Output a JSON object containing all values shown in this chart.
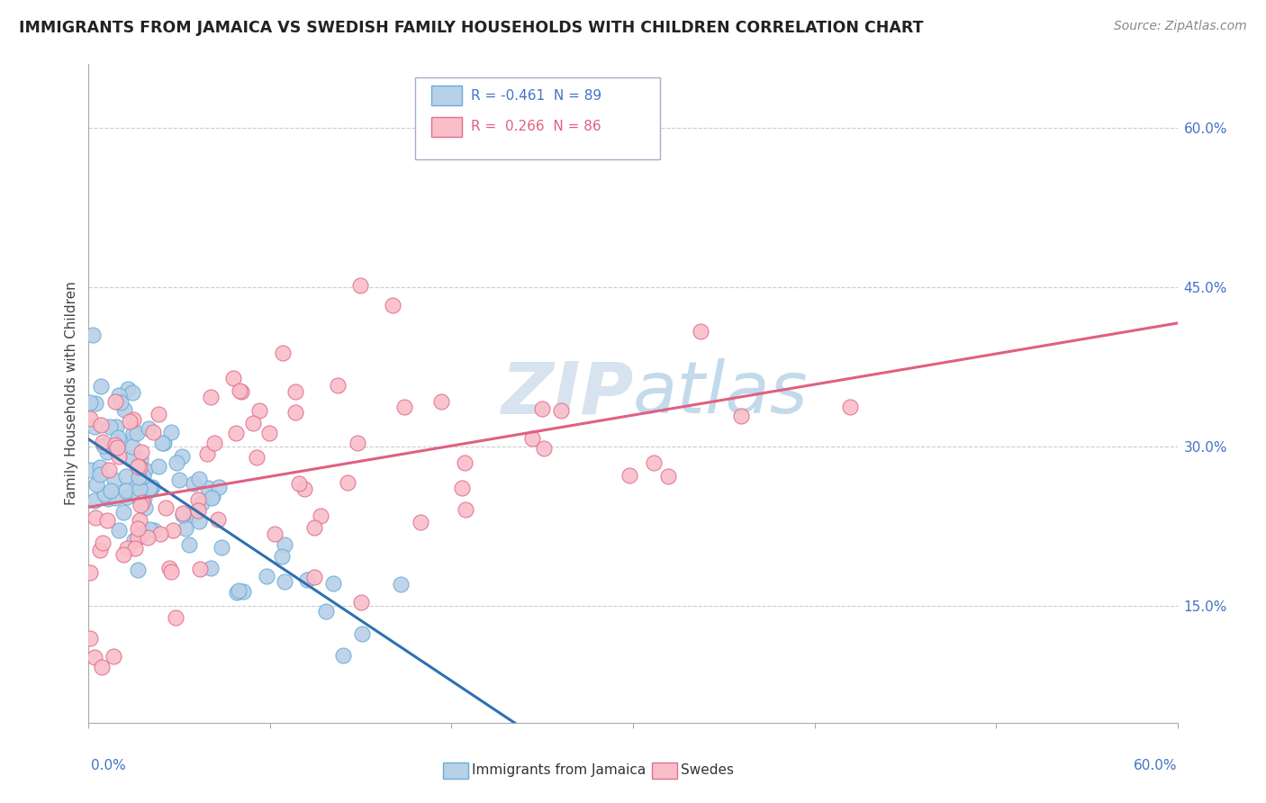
{
  "title": "IMMIGRANTS FROM JAMAICA VS SWEDISH FAMILY HOUSEHOLDS WITH CHILDREN CORRELATION CHART",
  "source": "Source: ZipAtlas.com",
  "ylabel": "Family Households with Children",
  "ytick_labels": [
    "15.0%",
    "30.0%",
    "45.0%",
    "60.0%"
  ],
  "ytick_values": [
    0.15,
    0.3,
    0.45,
    0.6
  ],
  "xlim": [
    0.0,
    0.6
  ],
  "ylim": [
    0.04,
    0.66
  ],
  "legend_label1": "Immigrants from Jamaica",
  "legend_label2": "Swedes",
  "r1": -0.461,
  "n1": 89,
  "r2": 0.266,
  "n2": 86,
  "color_blue_face": "#B8D0E8",
  "color_blue_edge": "#6aaed6",
  "color_pink_face": "#F9BEC8",
  "color_pink_edge": "#e07090",
  "color_line_blue": "#3070B0",
  "color_line_pink": "#E06080",
  "color_dashed": "#AAAACC",
  "watermark": "ZIPatlas"
}
